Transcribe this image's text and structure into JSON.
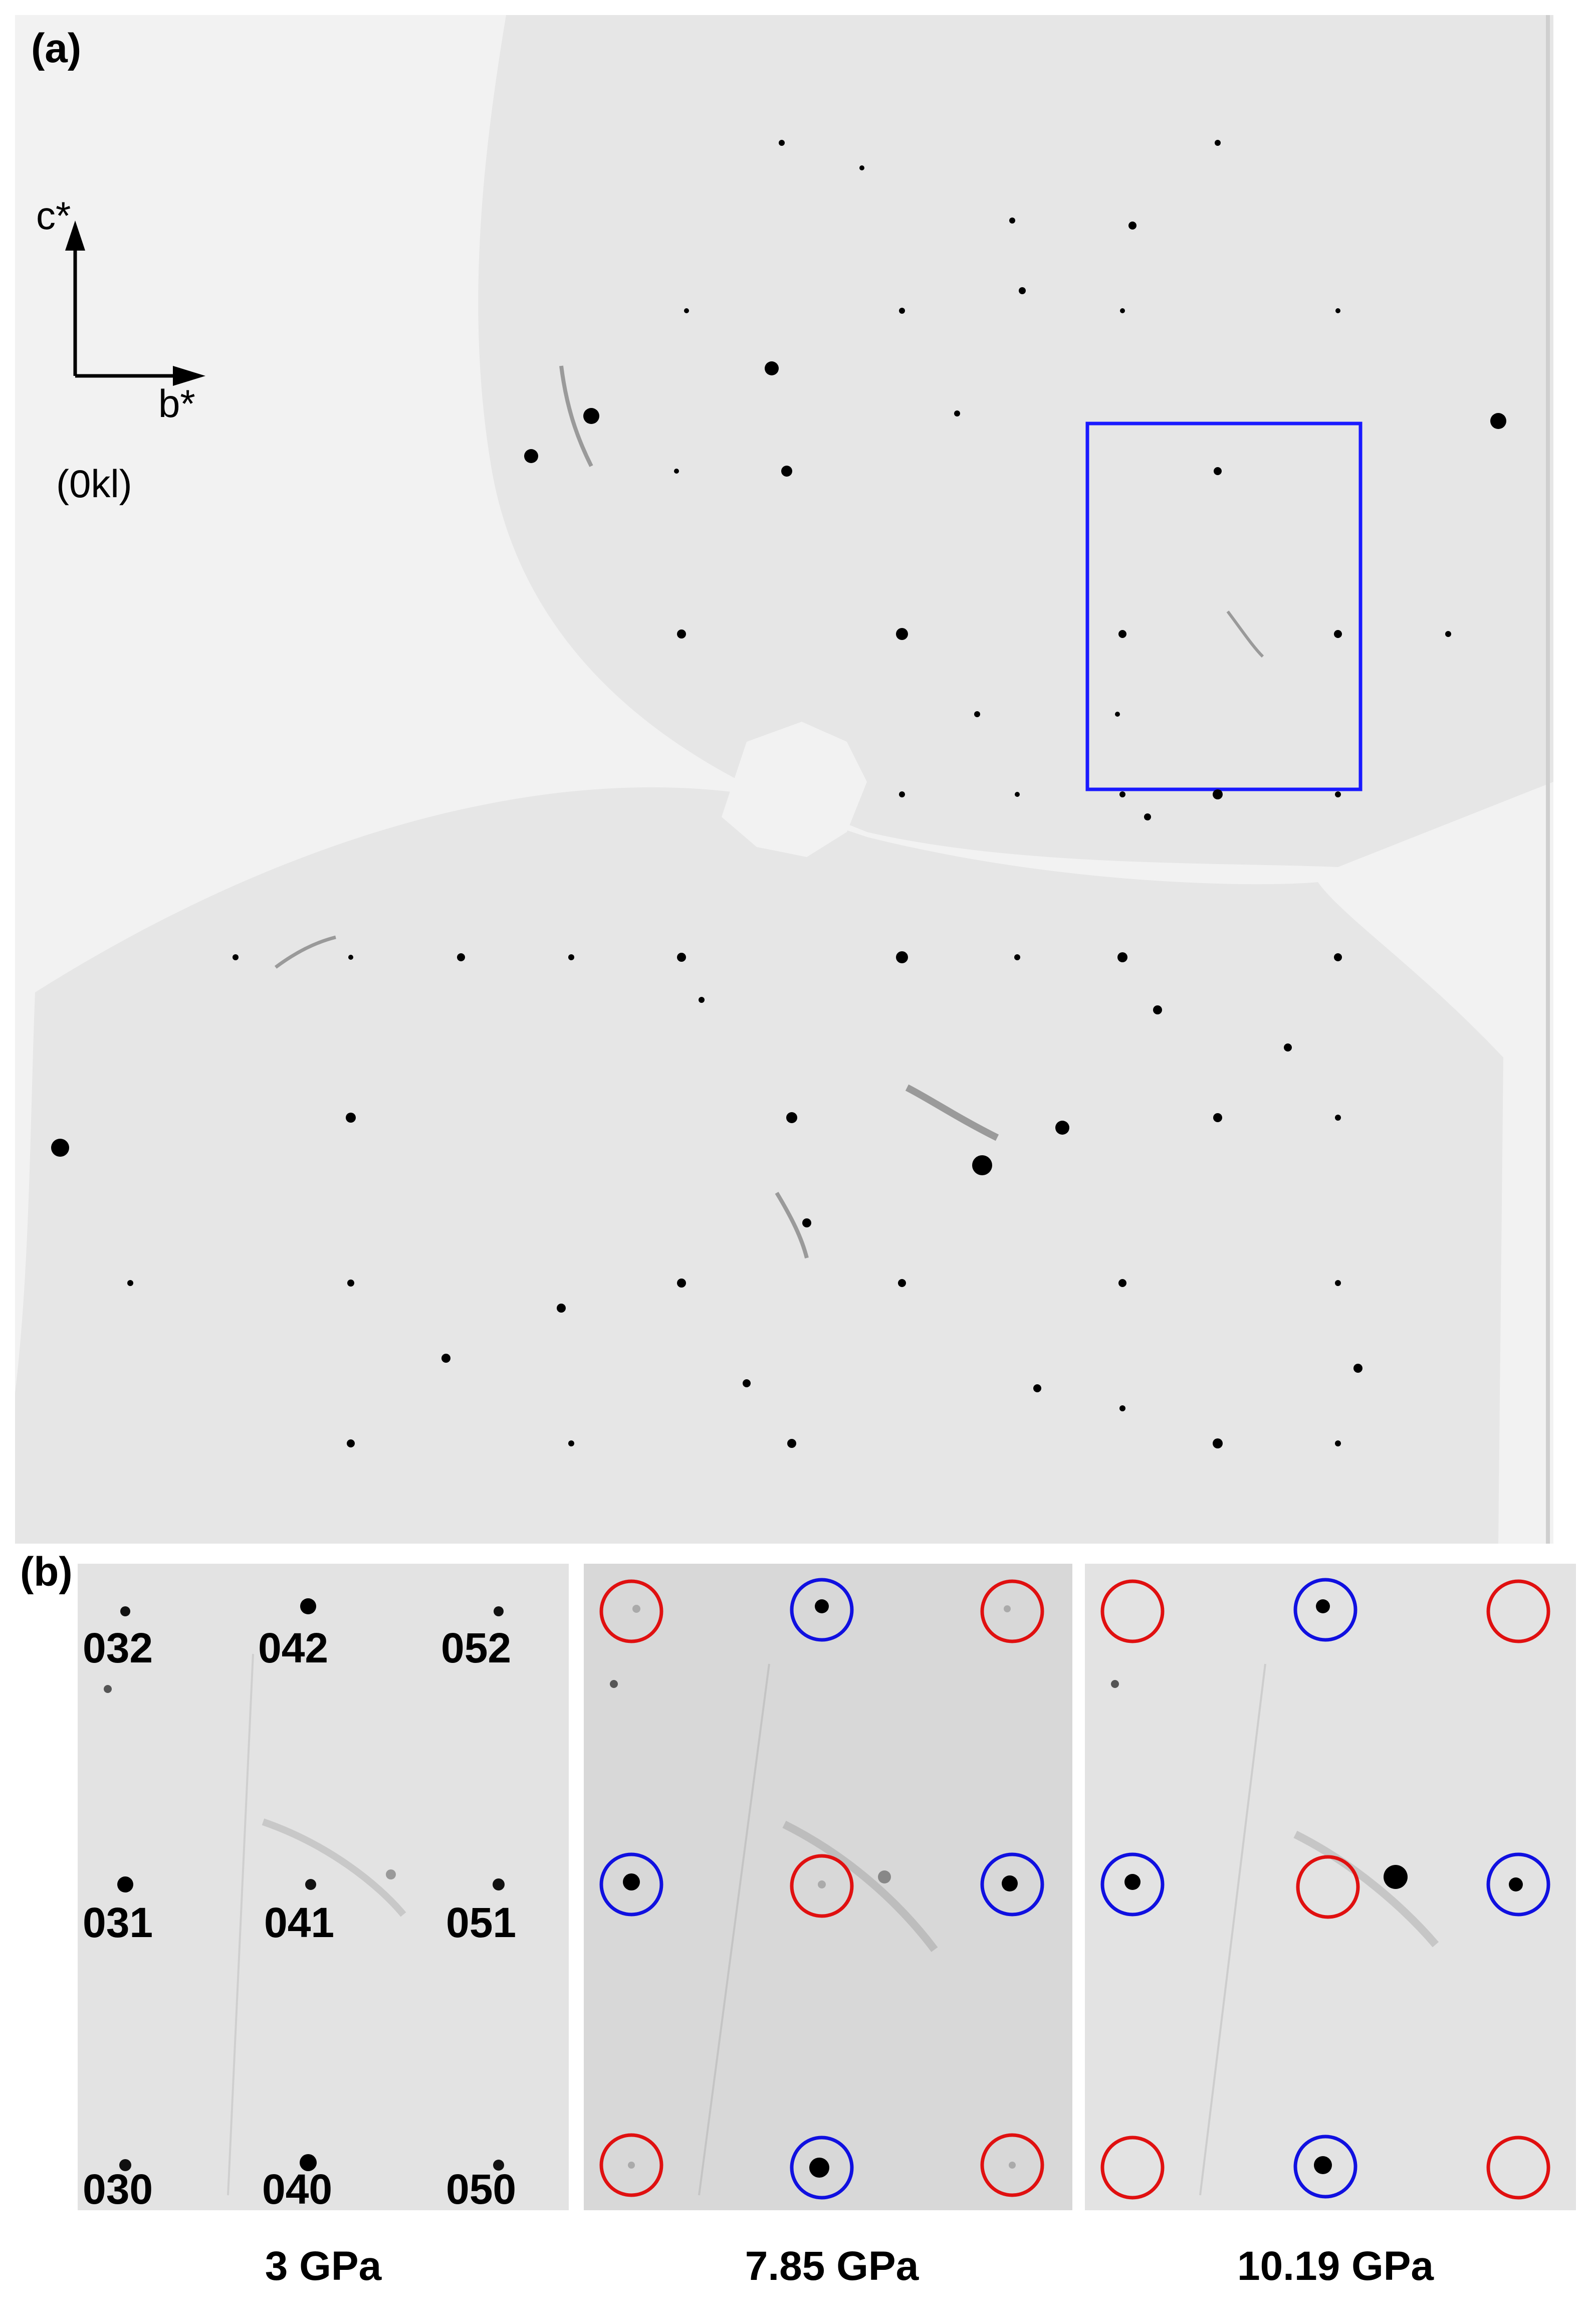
{
  "figure": {
    "panel_a_label": "(a)",
    "panel_b_label": "(b)",
    "axis_c": "c*",
    "axis_b": "b*",
    "zone": "(0kl)",
    "hkl_labels": [
      "032",
      "042",
      "052",
      "031",
      "041",
      "051",
      "030",
      "040",
      "050"
    ],
    "pressures": [
      "3 GPa",
      "7.85 GPa",
      "10.19 GPa"
    ],
    "colors": {
      "background": "#f2f2f2",
      "detector": "#e6e6e6",
      "spot": "#000000",
      "highlight_box": "#1a1aff",
      "circle_red": "#e01010",
      "circle_blue": "#1010e0"
    }
  }
}
